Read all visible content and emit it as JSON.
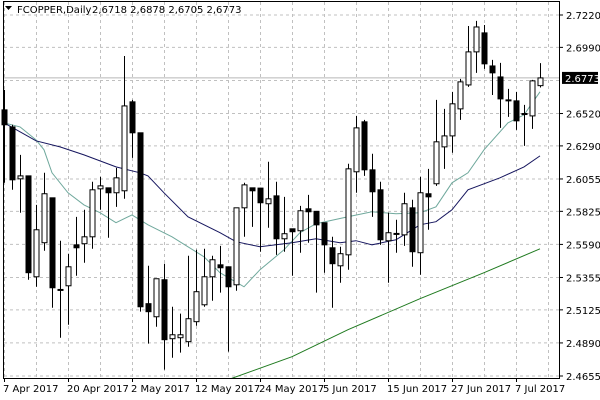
{
  "header": {
    "menu_icon": "triangle-down-icon",
    "title": "FCOPPER,Daily",
    "ohlc_text": "2,6718 2,6878 2,6705 2,6773"
  },
  "chart_data": {
    "type": "candlestick",
    "symbol": "FCOPPER",
    "timeframe": "Daily",
    "ylim": [
      2.4655,
      2.722
    ],
    "grid": true,
    "current_price": "2.6773",
    "y_ticks": [
      "2.7220",
      "2.6990",
      "2.6520",
      "2.6290",
      "2.6055",
      "2.5825",
      "2.5590",
      "2.5355",
      "2.5125",
      "2.4890",
      "2.4655"
    ],
    "x_ticks": [
      {
        "label": "7 Apr 2017",
        "index": 0
      },
      {
        "label": "20 Apr 2017",
        "index": 8
      },
      {
        "label": "2 May 2017",
        "index": 16
      },
      {
        "label": "12 May 2017",
        "index": 24
      },
      {
        "label": "24 May 2017",
        "index": 32
      },
      {
        "label": "5 Jun 2017",
        "index": 40
      },
      {
        "label": "15 Jun 2017",
        "index": 48
      },
      {
        "label": "27 Jun 2017",
        "index": 56
      },
      {
        "label": "7 Jul 2017",
        "index": 64
      }
    ],
    "ohlc_fields": [
      "open",
      "high",
      "low",
      "close"
    ],
    "ohlc": [
      [
        2.6546,
        2.6688,
        2.6028,
        2.644
      ],
      [
        2.6425,
        2.644,
        2.5978,
        2.6049
      ],
      [
        2.6056,
        2.6226,
        2.5815,
        2.6077
      ],
      [
        2.6077,
        2.608,
        2.5339,
        2.5389
      ],
      [
        2.536,
        2.5871,
        2.5289,
        2.5694
      ],
      [
        2.5602,
        2.6099,
        2.5545,
        2.595
      ],
      [
        2.5921,
        2.5921,
        2.514,
        2.5282
      ],
      [
        2.5268,
        2.5616,
        2.4927,
        2.527
      ],
      [
        2.5296,
        2.5524,
        2.5019,
        2.5431
      ],
      [
        2.5587,
        2.5786,
        2.5367,
        2.5566
      ],
      [
        2.5595,
        2.5836,
        2.546,
        2.5644
      ],
      [
        2.5644,
        2.6035,
        2.5559,
        2.5978
      ],
      [
        2.5985,
        2.607,
        2.5836,
        2.6006
      ],
      [
        2.5992,
        2.5992,
        2.5637,
        2.5957
      ],
      [
        2.5957,
        2.6134,
        2.5857,
        2.6063
      ],
      [
        2.5971,
        2.6929,
        2.5914,
        2.6574
      ],
      [
        2.6603,
        2.6617,
        2.6205,
        2.6383
      ],
      [
        2.6383,
        2.6383,
        2.5112,
        2.5147
      ],
      [
        2.5169,
        2.5438,
        2.4885,
        2.5112
      ],
      [
        2.5076,
        2.5346,
        2.5005,
        2.5346
      ],
      [
        2.5339,
        2.5453,
        2.47,
        2.4913
      ],
      [
        2.492,
        2.5147,
        2.4785,
        2.4948
      ],
      [
        2.4927,
        2.5098,
        2.4821,
        2.4948
      ],
      [
        2.4899,
        2.5509,
        2.4863,
        2.5062
      ],
      [
        2.5041,
        2.5552,
        2.5012,
        2.5254
      ],
      [
        2.5161,
        2.5559,
        2.5147,
        2.536
      ],
      [
        2.536,
        2.5509,
        2.519,
        2.5481
      ],
      [
        2.5445,
        2.558,
        2.5247,
        2.5424
      ],
      [
        2.5431,
        2.5431,
        2.4828,
        2.5289
      ],
      [
        2.5303,
        2.585,
        2.5261,
        2.585
      ],
      [
        2.585,
        2.6028,
        2.5644,
        2.6013
      ],
      [
        2.5992,
        2.5992,
        2.5715,
        2.5971
      ],
      [
        2.599,
        2.5992,
        2.5538,
        2.5886
      ],
      [
        2.5879,
        2.6177,
        2.5708,
        2.5914
      ],
      [
        2.5935,
        2.6035,
        2.5516,
        2.563
      ],
      [
        2.563,
        2.5928,
        2.5538,
        2.5666
      ],
      [
        2.5701,
        2.5701,
        2.5367,
        2.568
      ],
      [
        2.5687,
        2.5864,
        2.5531,
        2.5829
      ],
      [
        2.5843,
        2.5942,
        2.5602,
        2.5822
      ],
      [
        2.5825,
        2.5825,
        2.5247,
        2.5729
      ],
      [
        2.5744,
        2.5744,
        2.5389,
        2.5587
      ],
      [
        2.5566,
        2.5644,
        2.514,
        2.5453
      ],
      [
        2.5438,
        2.5573,
        2.5318,
        2.5524
      ],
      [
        2.5516,
        2.6163,
        2.541,
        2.6127
      ],
      [
        2.6106,
        2.6503,
        2.5957,
        2.6418
      ],
      [
        2.6461,
        2.6475,
        2.6077,
        2.612
      ],
      [
        2.612,
        2.6234,
        2.5786,
        2.5964
      ],
      [
        2.5978,
        2.6035,
        2.5587,
        2.5623
      ],
      [
        2.5616,
        2.5815,
        2.5318,
        2.5673
      ],
      [
        2.5666,
        2.5765,
        2.5531,
        2.5668
      ],
      [
        2.5658,
        2.5957,
        2.558,
        2.5879
      ],
      [
        2.585,
        2.5907,
        2.5431,
        2.5538
      ],
      [
        2.5531,
        2.607,
        2.5374,
        2.5957
      ],
      [
        2.595,
        2.6127,
        2.5694,
        2.5928
      ],
      [
        2.6021,
        2.6617,
        2.6006,
        2.6319
      ],
      [
        2.6283,
        2.6553,
        2.6127,
        2.6361
      ],
      [
        2.6361,
        2.6674,
        2.6241,
        2.6589
      ],
      [
        2.6553,
        2.6766,
        2.6475,
        2.6745
      ],
      [
        2.6723,
        2.7142,
        2.6709,
        2.6958
      ],
      [
        2.6958,
        2.7178,
        2.6809,
        2.7135
      ],
      [
        2.7093,
        2.7149,
        2.6837,
        2.6873
      ],
      [
        2.6858,
        2.6901,
        2.6652,
        2.6809
      ],
      [
        2.678,
        2.688,
        2.6418,
        2.6624
      ],
      [
        2.6617,
        2.6695,
        2.6496,
        2.6615
      ],
      [
        2.661,
        2.6674,
        2.6404,
        2.6468
      ],
      [
        2.6518,
        2.6581,
        2.629,
        2.652
      ],
      [
        2.6503,
        2.6759,
        2.6411,
        2.6752
      ],
      [
        2.6718,
        2.6878,
        2.6705,
        2.6773
      ]
    ],
    "moving_averages": [
      {
        "color": "#6fa89c",
        "points": [
          [
            0,
            2.6454
          ],
          [
            2,
            2.6425
          ],
          [
            4,
            2.6333
          ],
          [
            5,
            2.6262
          ],
          [
            6,
            2.6099
          ],
          [
            8,
            2.5957
          ],
          [
            10,
            2.5871
          ],
          [
            12,
            2.5815
          ],
          [
            14,
            2.5744
          ],
          [
            16,
            2.58
          ],
          [
            18,
            2.5729
          ],
          [
            21,
            2.5644
          ],
          [
            25,
            2.5502
          ],
          [
            27,
            2.5389
          ],
          [
            30,
            2.5289
          ],
          [
            32,
            2.541
          ],
          [
            35,
            2.5552
          ],
          [
            37,
            2.5673
          ],
          [
            39,
            2.5737
          ],
          [
            43,
            2.5786
          ],
          [
            46,
            2.5822
          ],
          [
            49,
            2.5808
          ],
          [
            52,
            2.5815
          ],
          [
            54,
            2.5857
          ],
          [
            56,
            2.6028
          ],
          [
            58,
            2.6099
          ],
          [
            60,
            2.6262
          ],
          [
            63,
            2.6454
          ],
          [
            65,
            2.651
          ],
          [
            67,
            2.6674
          ]
        ]
      },
      {
        "color": "#15155e",
        "points": [
          [
            0,
            2.6454
          ],
          [
            4,
            2.6326
          ],
          [
            7,
            2.6283
          ],
          [
            10,
            2.6226
          ],
          [
            14,
            2.6141
          ],
          [
            17,
            2.6099
          ],
          [
            18,
            2.6077
          ],
          [
            20,
            2.5957
          ],
          [
            23,
            2.5786
          ],
          [
            27,
            2.5673
          ],
          [
            29,
            2.5609
          ],
          [
            32,
            2.5573
          ],
          [
            36,
            2.5602
          ],
          [
            39,
            2.563
          ],
          [
            42,
            2.5602
          ],
          [
            44,
            2.5616
          ],
          [
            46,
            2.5587
          ],
          [
            49,
            2.5623
          ],
          [
            52,
            2.5729
          ],
          [
            54,
            2.5751
          ],
          [
            56,
            2.5836
          ],
          [
            58,
            2.5978
          ],
          [
            62,
            2.6063
          ],
          [
            65,
            2.6141
          ],
          [
            67,
            2.6219
          ]
        ]
      },
      {
        "color": "#1f7a1f",
        "points": [
          [
            28,
            2.4629
          ],
          [
            36,
            2.4792
          ],
          [
            43,
            2.4984
          ],
          [
            52,
            2.5204
          ],
          [
            60,
            2.5389
          ],
          [
            67,
            2.5559
          ]
        ]
      }
    ],
    "colors": {
      "bull_fill": "#ffffff",
      "bear_fill": "#000000",
      "outline": "#000000",
      "grid": "#c0c0c0",
      "current_price_bg": "#000000"
    }
  }
}
